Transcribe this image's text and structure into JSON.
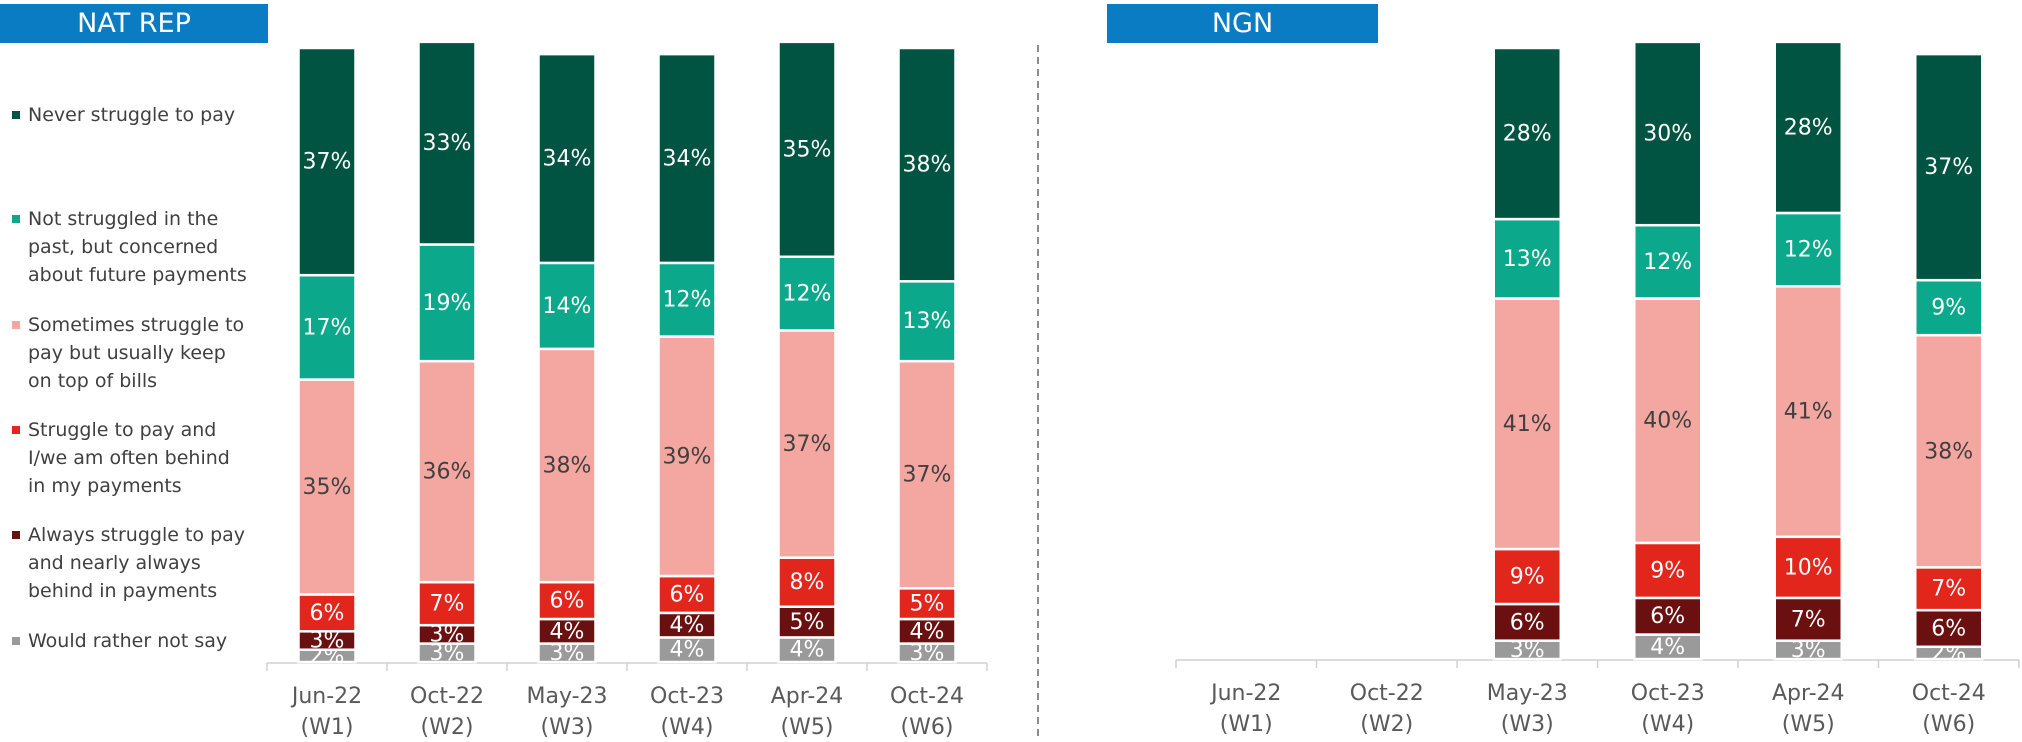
{
  "chart_data": [
    {
      "type": "stacked_bar",
      "title": "NAT REP",
      "categories": [
        "Jun-22 (W1)",
        "Oct-22 (W2)",
        "May-23 (W3)",
        "Oct-23 (W4)",
        "Apr-24 (W5)",
        "Oct-24 (W6)"
      ],
      "ylim": [
        0,
        100
      ],
      "series": [
        {
          "name": "Would rather not say",
          "color": "#9a9a9a",
          "values": [
            2,
            3,
            3,
            4,
            4,
            3
          ],
          "value_labels": [
            "2%",
            "3%",
            "3%",
            "4%",
            "4%",
            "3%"
          ]
        },
        {
          "name": "Always struggle to pay and nearly always behind in payments",
          "color": "#6b1010",
          "values": [
            3,
            3,
            4,
            4,
            5,
            4
          ],
          "value_labels": [
            "3%",
            "3%",
            "4%",
            "4%",
            "5%",
            "4%"
          ]
        },
        {
          "name": "Struggle to pay and I/we am often behind in my payments",
          "color": "#e2261c",
          "values": [
            6,
            7,
            6,
            6,
            8,
            5
          ],
          "value_labels": [
            "6%",
            "7%",
            "6%",
            "6%",
            "8%",
            "5%"
          ]
        },
        {
          "name": "Sometimes struggle to pay but usually keep on top of bills",
          "color": "#f4a7a1",
          "values": [
            35,
            36,
            38,
            39,
            37,
            37
          ],
          "value_labels": [
            "35%",
            "36%",
            "38%",
            "39%",
            "37%",
            "37%"
          ]
        },
        {
          "name": "Not struggled in the past, but concerned about future payments",
          "color": "#0ba88b",
          "values": [
            17,
            19,
            14,
            12,
            12,
            13
          ],
          "value_labels": [
            "17%",
            "19%",
            "14%",
            "12%",
            "12%",
            "13%"
          ]
        },
        {
          "name": "Never struggle to pay",
          "color": "#005441",
          "values": [
            37,
            33,
            34,
            34,
            35,
            38
          ],
          "value_labels": [
            "37%",
            "33%",
            "34%",
            "34%",
            "35%",
            "38%"
          ]
        }
      ]
    },
    {
      "type": "stacked_bar",
      "title": "NGN",
      "categories": [
        "Jun-22 (W1)",
        "Oct-22 (W2)",
        "May-23 (W3)",
        "Oct-23 (W4)",
        "Apr-24 (W5)",
        "Oct-24 (W6)"
      ],
      "ylim": [
        0,
        100
      ],
      "series": [
        {
          "color": "#9a9a9a",
          "values": [
            null,
            null,
            3,
            4,
            3,
            2
          ],
          "value_labels": [
            null,
            null,
            "3%",
            "4%",
            "3%",
            "2%"
          ]
        },
        {
          "color": "#6b1010",
          "values": [
            null,
            null,
            6,
            6,
            7,
            6
          ],
          "value_labels": [
            null,
            null,
            "6%",
            "6%",
            "7%",
            "6%"
          ]
        },
        {
          "color": "#e2261c",
          "values": [
            null,
            null,
            9,
            9,
            10,
            7
          ],
          "value_labels": [
            null,
            null,
            "9%",
            "9%",
            "10%",
            "7%"
          ]
        },
        {
          "color": "#f4a7a1",
          "values": [
            null,
            null,
            41,
            40,
            41,
            38
          ],
          "value_labels": [
            null,
            null,
            "41%",
            "40%",
            "41%",
            "38%"
          ]
        },
        {
          "color": "#0ba88b",
          "values": [
            null,
            null,
            13,
            12,
            12,
            9
          ],
          "value_labels": [
            null,
            null,
            "13%",
            "12%",
            "12%",
            "9%"
          ]
        },
        {
          "color": "#005441",
          "values": [
            null,
            null,
            28,
            30,
            28,
            37
          ],
          "value_labels": [
            null,
            null,
            "28%",
            "30%",
            "28%",
            "37%"
          ]
        }
      ]
    }
  ]
}
